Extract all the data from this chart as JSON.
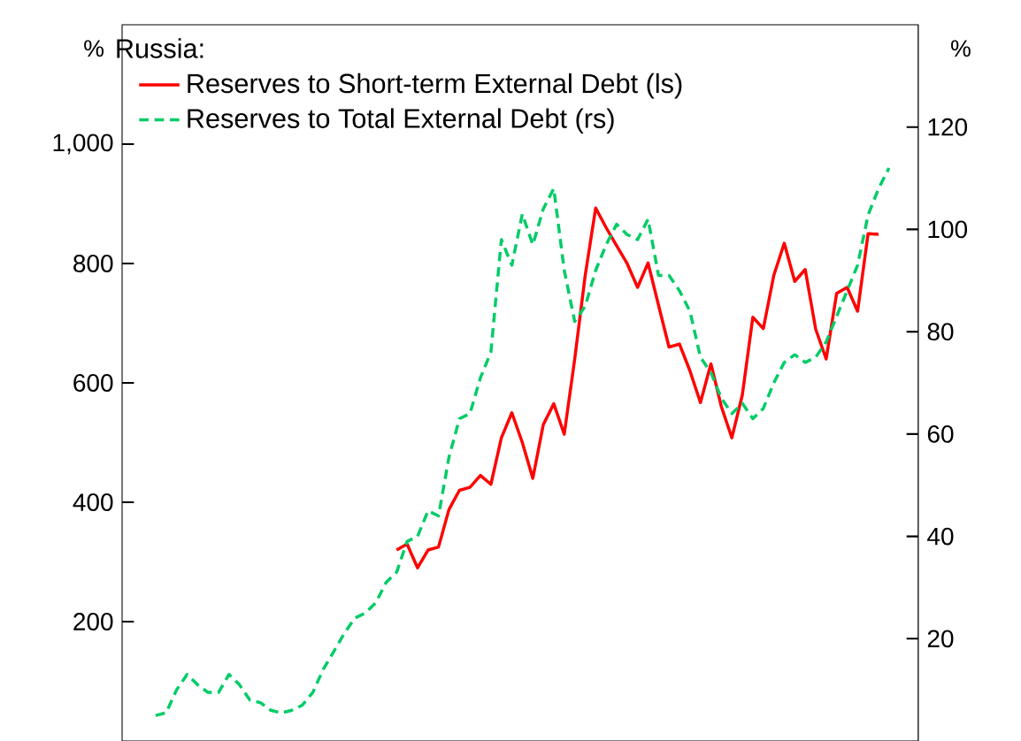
{
  "chart_data": {
    "type": "line",
    "ylabel": "%",
    "y2label": "%",
    "legend_title": "Russia:",
    "legend": "top left",
    "tick_labels": "y",
    "marker": "none",
    "categories": [
      null,
      null,
      null,
      null,
      null,
      null,
      null,
      null,
      null,
      null,
      null,
      null,
      null,
      null,
      null,
      null,
      null,
      null,
      null,
      null,
      null,
      null,
      null,
      null,
      null,
      null,
      null,
      null,
      null,
      null,
      null,
      null,
      null,
      null,
      null,
      null,
      null,
      null,
      null,
      null,
      null,
      null,
      null,
      null,
      null,
      null,
      null,
      null,
      null,
      null,
      null,
      null,
      null,
      null,
      null,
      null,
      null,
      null,
      null,
      null,
      null,
      null,
      null,
      null,
      null,
      null,
      null,
      null,
      null,
      null,
      null
    ],
    "ylim": [
      0,
      1200
    ],
    "yticks": [
      200,
      400,
      600,
      800,
      {
        "value": 1000,
        "label": "1,000"
      }
    ],
    "y2lim": [
      0,
      140
    ],
    "y2ticks": [
      20,
      40,
      60,
      80,
      100,
      120
    ],
    "series": [
      {
        "name": "Reserves to Short-term External Debt (ls)",
        "color": "#ff0000",
        "line_style": "solid",
        "axis": "y",
        "values": [
          null,
          null,
          null,
          null,
          null,
          null,
          null,
          null,
          null,
          null,
          null,
          null,
          null,
          null,
          null,
          null,
          null,
          null,
          null,
          null,
          null,
          null,
          null,
          320,
          330,
          290,
          320,
          325,
          388,
          420,
          425,
          445,
          430,
          508,
          550,
          500,
          440,
          530,
          565,
          514,
          640,
          780,
          893,
          860,
          830,
          800,
          760,
          801,
          730,
          660,
          665,
          620,
          567,
          632,
          560,
          508,
          580,
          710,
          691,
          780,
          834,
          770,
          790,
          690,
          640,
          750,
          760,
          720,
          850,
          849,
          null
        ]
      },
      {
        "name": "Reserves to Total External Debt (rs)",
        "color": "#00cc66",
        "line_style": "dashed",
        "axis": "y2",
        "values": [
          5,
          5.5,
          10,
          13,
          11,
          9.5,
          9.5,
          13,
          11,
          8,
          7.5,
          6,
          5.5,
          6,
          7,
          9.5,
          14,
          17.5,
          21,
          24,
          25,
          27,
          31,
          33,
          39,
          40,
          45,
          44,
          55.5,
          63,
          64,
          71,
          76,
          98,
          93,
          103,
          97,
          104,
          108,
          92,
          82,
          85,
          92,
          97,
          101,
          99,
          98,
          102,
          91,
          91,
          88,
          84,
          75,
          72,
          67,
          64,
          66,
          63,
          65,
          70,
          74,
          75.5,
          74,
          75,
          78,
          83,
          88,
          93,
          102.8,
          108,
          112
        ]
      }
    ]
  }
}
